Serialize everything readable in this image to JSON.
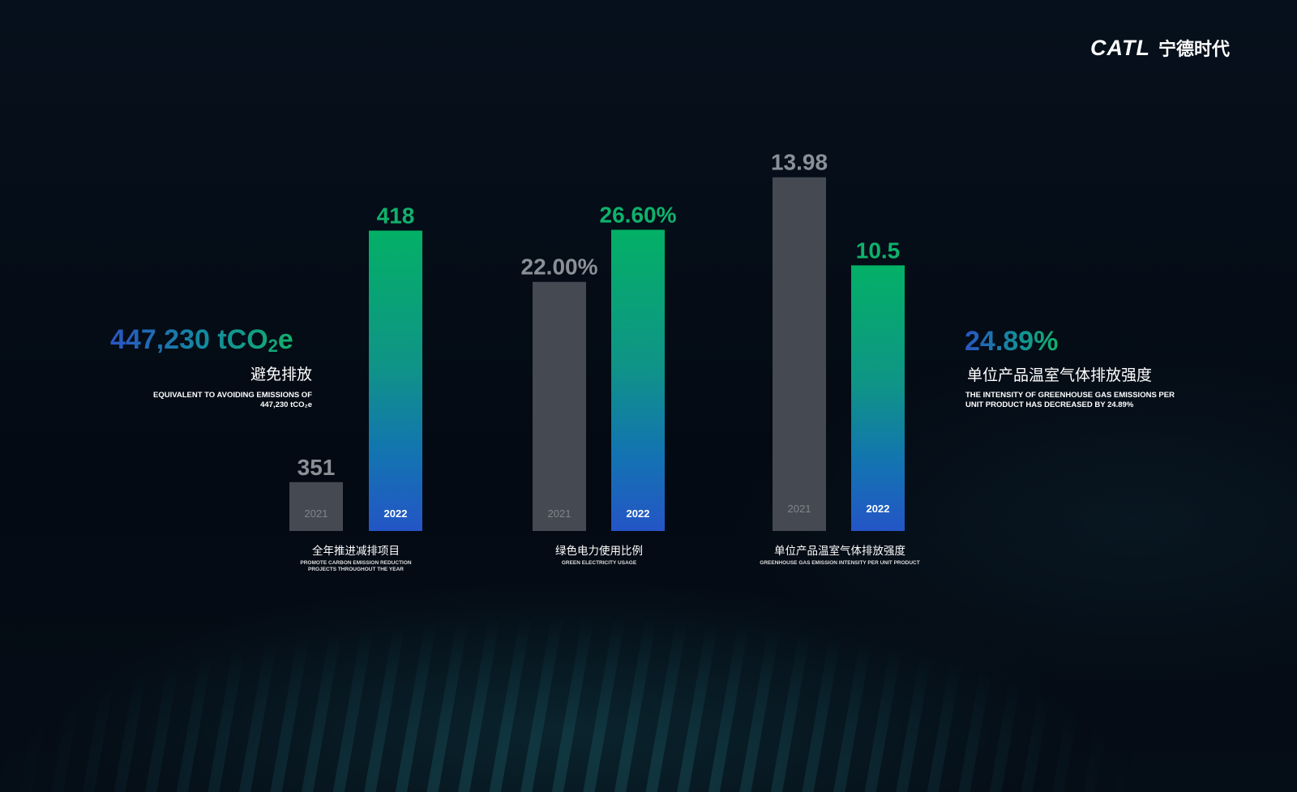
{
  "logo": {
    "en": "CATL",
    "cn": "宁德时代"
  },
  "left_stat": {
    "value": "447,230 tCO",
    "subscript": "2",
    "suffix": "e",
    "cn_label": "避免排放",
    "en_label_1": "EQUIVALENT TO AVOIDING EMISSIONS OF",
    "en_label_2": "447,230 tCO₂e"
  },
  "right_stat": {
    "value": "24.89%",
    "cn_label": "单位产品温室气体排放强度",
    "en_label_1": "THE INTENSITY OF GREENHOUSE GAS EMISSIONS PER",
    "en_label_2": "UNIT PRODUCT HAS DECREASED BY 24.89%"
  },
  "colors": {
    "gray_bar": "#454a52",
    "gray_label": "#8b9097",
    "green": "#0fb26c",
    "teal": "#118e9c",
    "blue": "#2455c6",
    "background": "#040a13"
  },
  "chart_data": [
    {
      "type": "bar",
      "title": "全年推进减排项目",
      "subtitle": "PROMOTE CARBON EMISSION REDUCTION PROJECTS THROUGHOUT THE YEAR",
      "categories": [
        "2021",
        "2022"
      ],
      "values": [
        351,
        418
      ],
      "value_labels": [
        "351",
        "418"
      ],
      "ylim": [
        338,
        433
      ]
    },
    {
      "type": "bar",
      "title": "绿色电力使用比例",
      "subtitle": "GREEN ELECTRICITY USAGE",
      "categories": [
        "2021",
        "2022"
      ],
      "values": [
        22.0,
        26.6
      ],
      "value_labels": [
        "22.00%",
        "26.60%"
      ],
      "ylim": [
        0,
        31.5
      ]
    },
    {
      "type": "bar",
      "title": "单位产品温室气体排放强度",
      "subtitle": "GREENHOUSE GAS EMISSION INTENSITY PER UNIT PRODUCT",
      "categories": [
        "2021",
        "2022"
      ],
      "values": [
        13.98,
        10.5
      ],
      "value_labels": [
        "13.98",
        "10.5"
      ],
      "ylim": [
        0,
        14.1
      ]
    }
  ]
}
